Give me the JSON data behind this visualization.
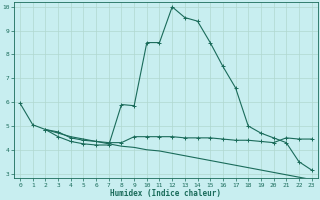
{
  "xlabel": "Humidex (Indice chaleur)",
  "bg_color": "#c8eef0",
  "grid_color": "#b0d8d0",
  "line_color": "#1a6b5a",
  "xlim": [
    -0.5,
    23.5
  ],
  "ylim": [
    2.8,
    10.2
  ],
  "yticks": [
    3,
    4,
    5,
    6,
    7,
    8,
    9,
    10
  ],
  "xticks": [
    0,
    1,
    2,
    3,
    4,
    5,
    6,
    7,
    8,
    9,
    10,
    11,
    12,
    13,
    14,
    15,
    16,
    17,
    18,
    19,
    20,
    21,
    22,
    23
  ],
  "line1_x": [
    0,
    1,
    2,
    3,
    4,
    5,
    6,
    7,
    8,
    9,
    10,
    11,
    12,
    13,
    14,
    15,
    16,
    17,
    18,
    19,
    20,
    21,
    22,
    23
  ],
  "line1_y": [
    5.95,
    5.05,
    4.85,
    4.55,
    4.35,
    4.25,
    4.2,
    4.2,
    5.9,
    5.85,
    8.5,
    8.5,
    10.0,
    9.55,
    9.4,
    8.5,
    7.5,
    6.6,
    5.0,
    4.7,
    4.5,
    4.3,
    3.5,
    3.15
  ],
  "line2_x": [
    2,
    3,
    4,
    5,
    6,
    7,
    8,
    9,
    10,
    11,
    12,
    13,
    14,
    15,
    16,
    17,
    18,
    19,
    20,
    21,
    22,
    23
  ],
  "line2_y": [
    4.85,
    4.75,
    4.5,
    4.4,
    4.35,
    4.3,
    4.3,
    4.55,
    4.55,
    4.55,
    4.55,
    4.5,
    4.5,
    4.5,
    4.45,
    4.4,
    4.4,
    4.35,
    4.3,
    4.5,
    4.45,
    4.45
  ],
  "line3_x": [
    2,
    3,
    4,
    5,
    6,
    7,
    8,
    9,
    10,
    11,
    12,
    13,
    14,
    15,
    16,
    17,
    18,
    19,
    20,
    21,
    22,
    23
  ],
  "line3_y": [
    4.85,
    4.7,
    4.55,
    4.45,
    4.35,
    4.25,
    4.15,
    4.1,
    4.0,
    3.95,
    3.85,
    3.75,
    3.65,
    3.55,
    3.45,
    3.35,
    3.25,
    3.15,
    3.05,
    2.95,
    2.85,
    2.75
  ]
}
